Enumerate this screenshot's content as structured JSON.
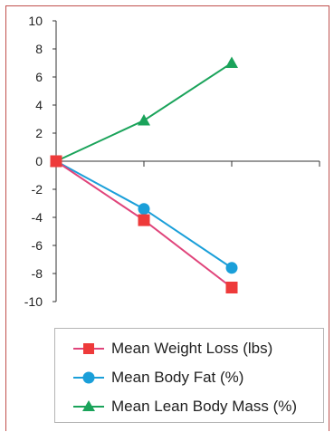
{
  "chart_data": {
    "type": "line",
    "x": [
      0,
      1,
      2
    ],
    "ylim": [
      -10,
      10
    ],
    "yticks": [
      10,
      8,
      6,
      4,
      2,
      0,
      -2,
      -4,
      -6,
      -8,
      -10
    ],
    "ytick_labels": [
      "10",
      "8",
      "6",
      "4",
      "2",
      "0",
      "-2",
      "-4",
      "-6",
      "-8",
      "-10"
    ],
    "grid": false,
    "legend_position": "bottom",
    "series": [
      {
        "name": "Mean Weight Loss (lbs)",
        "values": [
          0,
          -4.2,
          -9.0
        ],
        "color": "#e0457b",
        "marker_color": "#ee3a3a",
        "marker": "square"
      },
      {
        "name": "Mean Body Fat (%)",
        "values": [
          0,
          -3.4,
          -7.6
        ],
        "color": "#1a9fd9",
        "marker_color": "#1a9fd9",
        "marker": "circle"
      },
      {
        "name": "Mean Lean Body Mass (%)",
        "values": [
          0,
          2.9,
          7.0
        ],
        "color": "#1aa35a",
        "marker_color": "#1aa35a",
        "marker": "triangle"
      }
    ]
  },
  "frame_color": "#c0504d"
}
